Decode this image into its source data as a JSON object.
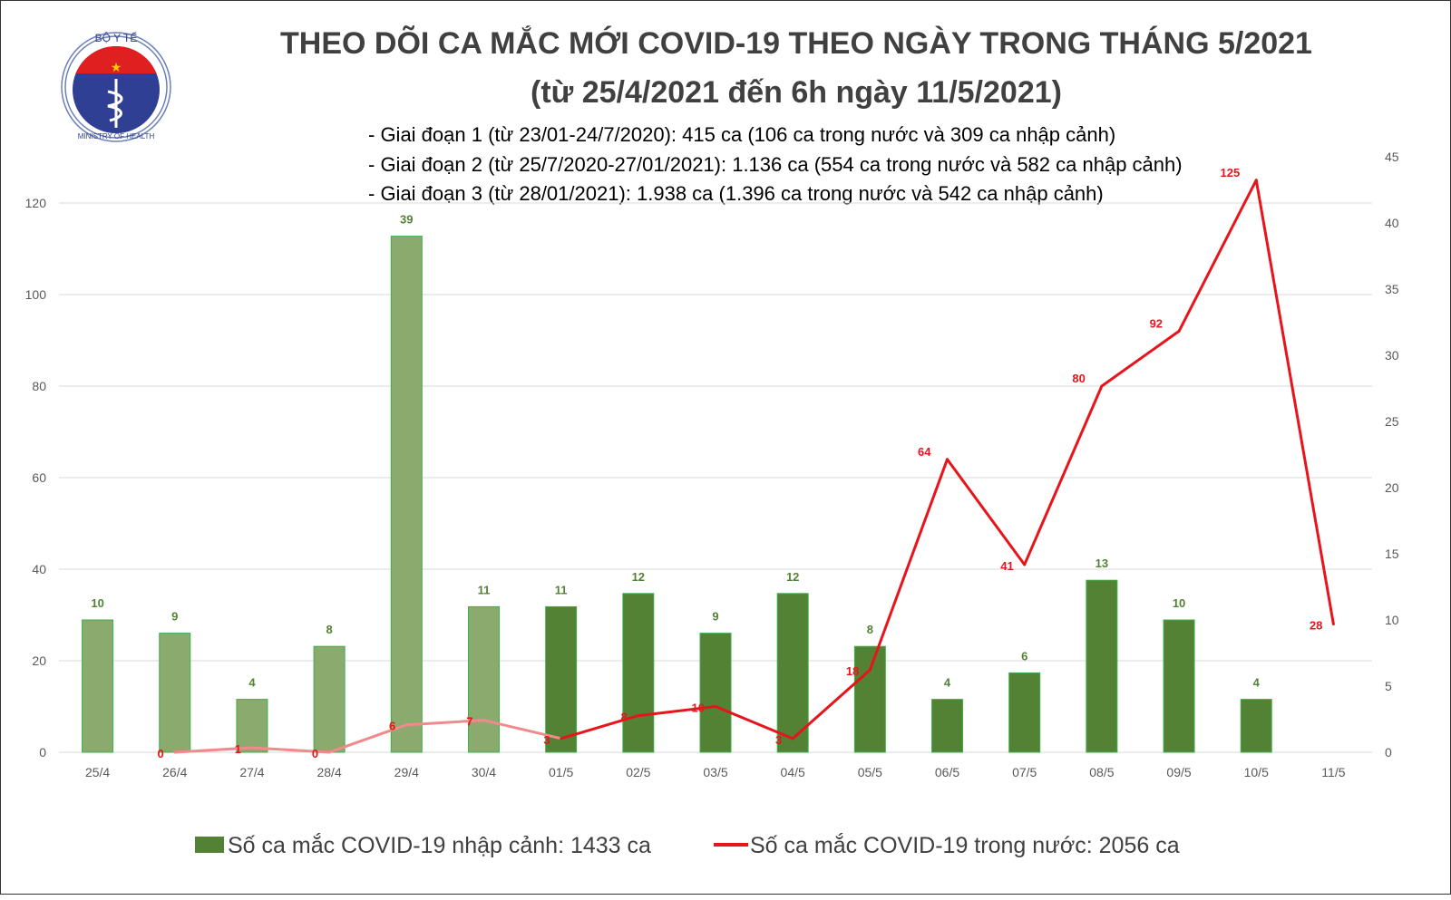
{
  "chart_data": {
    "type": "bar+line",
    "title": "THEO DÕI CA MẮC MỚI COVID-19 THEO NGÀY TRONG THÁNG 5/2021",
    "subtitle": "(từ 25/4/2021 đến 6h ngày 11/5/2021)",
    "notes": [
      "- Giai đoạn 1 (từ 23/01-24/7/2020): 415 ca (106 ca trong nước và 309 ca nhập cảnh)",
      "- Giai đoạn 2 (từ 25/7/2020-27/01/2021): 1.136 ca (554 ca trong nước và 582 ca nhập cảnh)",
      "- Giai đoạn 3 (từ 28/01/2021): 1.938 ca (1.396 ca trong nước và 542 ca nhập cảnh)"
    ],
    "logo_text": [
      "BỘ Y TẾ",
      "MINISTRY OF HEALTH"
    ],
    "categories": [
      "25/4",
      "26/4",
      "27/4",
      "28/4",
      "29/4",
      "30/4",
      "01/5",
      "02/5",
      "03/5",
      "04/5",
      "05/5",
      "06/5",
      "07/5",
      "08/5",
      "09/5",
      "10/5",
      "11/5"
    ],
    "left_axis": {
      "ylim": [
        0,
        120
      ],
      "ticks": [
        "0",
        "20",
        "40",
        "60",
        "80",
        "100",
        "120"
      ]
    },
    "right_axis": {
      "ylim": [
        0,
        45
      ],
      "ticks": [
        "0",
        "5",
        "10",
        "15",
        "20",
        "25",
        "30",
        "35",
        "40",
        "45"
      ]
    },
    "grid": true,
    "legend_position": "bottom",
    "series": [
      {
        "name": "Số ca mắc COVID-19 nhập cảnh: 1433 ca",
        "type": "bar",
        "axis": "right",
        "values": [
          10,
          9,
          4,
          8,
          39,
          11,
          11,
          12,
          9,
          12,
          8,
          4,
          6,
          13,
          10,
          4,
          null
        ],
        "color": "#548235",
        "faded_color": "#8aaa6e",
        "faded_until_index": 5
      },
      {
        "name": "Số ca mắc COVID-19 trong nước: 2056 ca",
        "type": "line",
        "axis": "left",
        "values": [
          null,
          0,
          1,
          0,
          6,
          7,
          3,
          8,
          10,
          3,
          18,
          64,
          41,
          80,
          92,
          125,
          28
        ],
        "color": "#e8141b",
        "faded_color": "#f08a8c",
        "faded_until_index": 6
      }
    ]
  }
}
